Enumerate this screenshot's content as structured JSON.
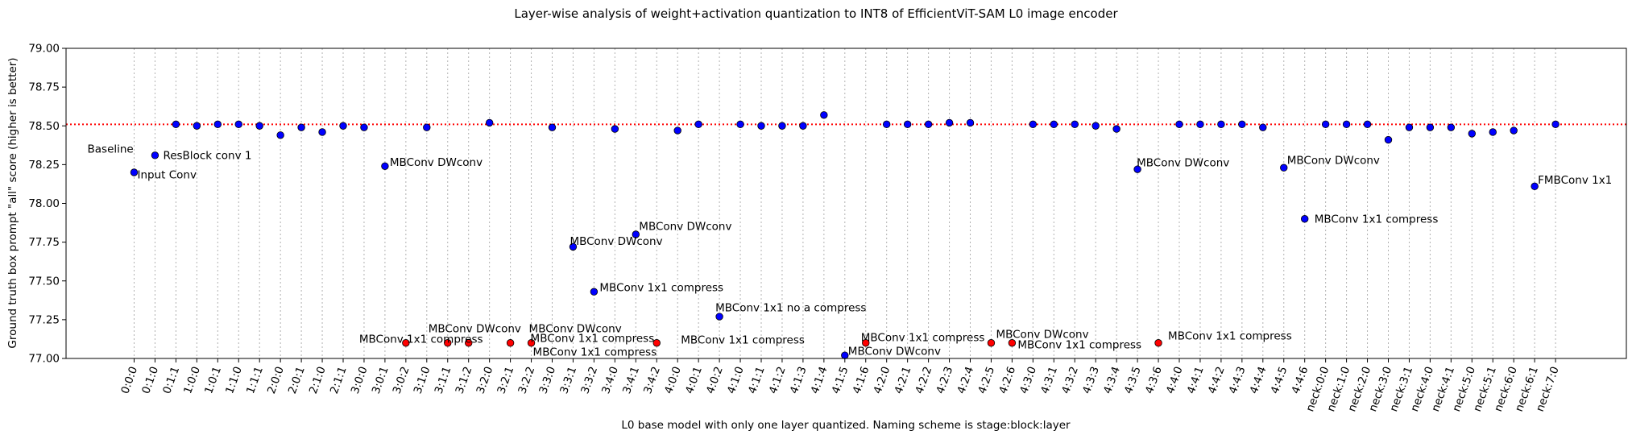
{
  "chart_data": {
    "type": "scatter",
    "title": "Layer-wise analysis of weight+activation quantization to INT8 of EfficientViT-SAM L0 image encoder",
    "xlabel": "L0 base model with only one layer quantized. Naming scheme is stage:block:layer",
    "ylabel": "Ground truth box prompt \"all\" score (higher is better)",
    "ylim": [
      77.0,
      79.0
    ],
    "yticks": [
      "77.00",
      "77.25",
      "77.50",
      "77.75",
      "78.00",
      "78.25",
      "78.50",
      "78.75",
      "79.00"
    ],
    "grid": "vertical dotted lines at every category",
    "baseline": {
      "value": 78.51,
      "label": "Baseline",
      "color": "#ff0000"
    },
    "colors": {
      "above_ylim": "#0000ff",
      "clipped_below_ylim": "#ff0000"
    },
    "categories": [
      "0:0:0",
      "0:1:0",
      "0:1:1",
      "1:0:0",
      "1:0:1",
      "1:1:0",
      "1:1:1",
      "2:0:0",
      "2:0:1",
      "2:1:0",
      "2:1:1",
      "3:0:0",
      "3:0:1",
      "3:0:2",
      "3:1:0",
      "3:1:1",
      "3:1:2",
      "3:2:0",
      "3:2:1",
      "3:2:2",
      "3:3:0",
      "3:3:1",
      "3:3:2",
      "3:4:0",
      "3:4:1",
      "3:4:2",
      "4:0:0",
      "4:0:1",
      "4:0:2",
      "4:1:0",
      "4:1:1",
      "4:1:2",
      "4:1:3",
      "4:1:4",
      "4:1:5",
      "4:1:6",
      "4:2:0",
      "4:2:1",
      "4:2:2",
      "4:2:3",
      "4:2:4",
      "4:2:5",
      "4:2:6",
      "4:3:0",
      "4:3:1",
      "4:3:2",
      "4:3:3",
      "4:3:4",
      "4:3:5",
      "4:3:6",
      "4:4:0",
      "4:4:1",
      "4:4:2",
      "4:4:3",
      "4:4:4",
      "4:4:5",
      "4:4:6",
      "neck:0:0",
      "neck:1:0",
      "neck:2:0",
      "neck:3:0",
      "neck:3:1",
      "neck:4:0",
      "neck:4:1",
      "neck:5:0",
      "neck:5:1",
      "neck:6:0",
      "neck:6:1",
      "neck:7:0"
    ],
    "values": [
      78.2,
      78.31,
      78.51,
      78.5,
      78.51,
      78.51,
      78.5,
      78.44,
      78.49,
      78.46,
      78.5,
      78.49,
      78.24,
      77.1,
      78.49,
      77.1,
      77.1,
      78.52,
      77.1,
      77.1,
      78.49,
      77.72,
      77.43,
      78.48,
      77.8,
      77.1,
      78.47,
      78.51,
      77.27,
      78.51,
      78.5,
      78.5,
      78.5,
      78.57,
      77.02,
      77.1,
      78.51,
      78.51,
      78.51,
      78.52,
      78.52,
      77.1,
      77.1,
      78.51,
      78.51,
      78.51,
      78.5,
      78.48,
      78.22,
      77.1,
      78.51,
      78.51,
      78.51,
      78.51,
      78.49,
      78.23,
      77.9,
      78.51,
      78.51,
      78.51,
      78.41,
      78.49,
      78.49,
      78.49,
      78.45,
      78.46,
      78.47,
      78.11,
      78.51
    ],
    "clipped": [
      13,
      15,
      16,
      18,
      19,
      25,
      35,
      41,
      42,
      49
    ],
    "annotations": [
      {
        "text": "Input Conv",
        "index": 0,
        "value": 78.2,
        "dx": 2,
        "dy": 3
      },
      {
        "text": "ResBlock conv 1",
        "index": 1,
        "value": 78.31,
        "dx": 8,
        "dy": 0
      },
      {
        "text": "MBConv DWconv",
        "index": 12,
        "value": 78.24,
        "dx": 4,
        "dy": -5
      },
      {
        "text": "MBConv 1x1 compress",
        "index": 13,
        "value": 77.1,
        "dx": -60,
        "dy": -5
      },
      {
        "text": "MBConv DWconv",
        "index": 15,
        "value": 77.1,
        "dx": -26,
        "dy": -18
      },
      {
        "text": "MBConv DWconv",
        "index": 19,
        "value": 77.1,
        "dx": -5,
        "dy": -18
      },
      {
        "text": "MBConv 1x1 compress",
        "index": 19,
        "value": 77.1,
        "dx": -3,
        "dy": -6
      },
      {
        "text": "MBConv 1x1 compress",
        "index": 19,
        "value": 77.1,
        "dx": 0,
        "dy": 11
      },
      {
        "text": "MBConv DWconv",
        "index": 21,
        "value": 77.72,
        "dx": -6,
        "dy": -7
      },
      {
        "text": "MBConv 1x1 compress",
        "index": 22,
        "value": 77.43,
        "dx": 5,
        "dy": -5
      },
      {
        "text": "MBConv DWconv",
        "index": 24,
        "value": 77.8,
        "dx": 2,
        "dy": -10
      },
      {
        "text": "MBConv 1x1 compress",
        "index": 25,
        "value": 77.1,
        "dx": 28,
        "dy": -4
      },
      {
        "text": "MBConv 1x1 no a compress",
        "index": 28,
        "value": 77.27,
        "dx": -7,
        "dy": -11
      },
      {
        "text": "MBConv 1x1 compress",
        "index": 35,
        "value": 77.1,
        "dx": -8,
        "dy": -7
      },
      {
        "text": "MBConv DWconv",
        "index": 34,
        "value": 77.02,
        "dx": 2,
        "dy": -5
      },
      {
        "text": "MBConv DWconv",
        "index": 41,
        "value": 77.1,
        "dx": 4,
        "dy": -11
      },
      {
        "text": "MBConv 1x1 compress",
        "index": 42,
        "value": 77.1,
        "dx": 5,
        "dy": 2
      },
      {
        "text": "MBConv 1x1 compress",
        "index": 49,
        "value": 77.1,
        "dx": 10,
        "dy": -9
      },
      {
        "text": "MBConv DWconv",
        "index": 48,
        "value": 78.22,
        "dx": -3,
        "dy": -8
      },
      {
        "text": "MBConv DWconv",
        "index": 55,
        "value": 78.23,
        "dx": 2,
        "dy": -9
      },
      {
        "text": "MBConv 1x1 compress",
        "index": 56,
        "value": 77.9,
        "dx": 10,
        "dy": 0
      },
      {
        "text": "FMBConv 1x1",
        "index": 67,
        "value": 78.11,
        "dx": 2,
        "dy": -8
      }
    ]
  }
}
